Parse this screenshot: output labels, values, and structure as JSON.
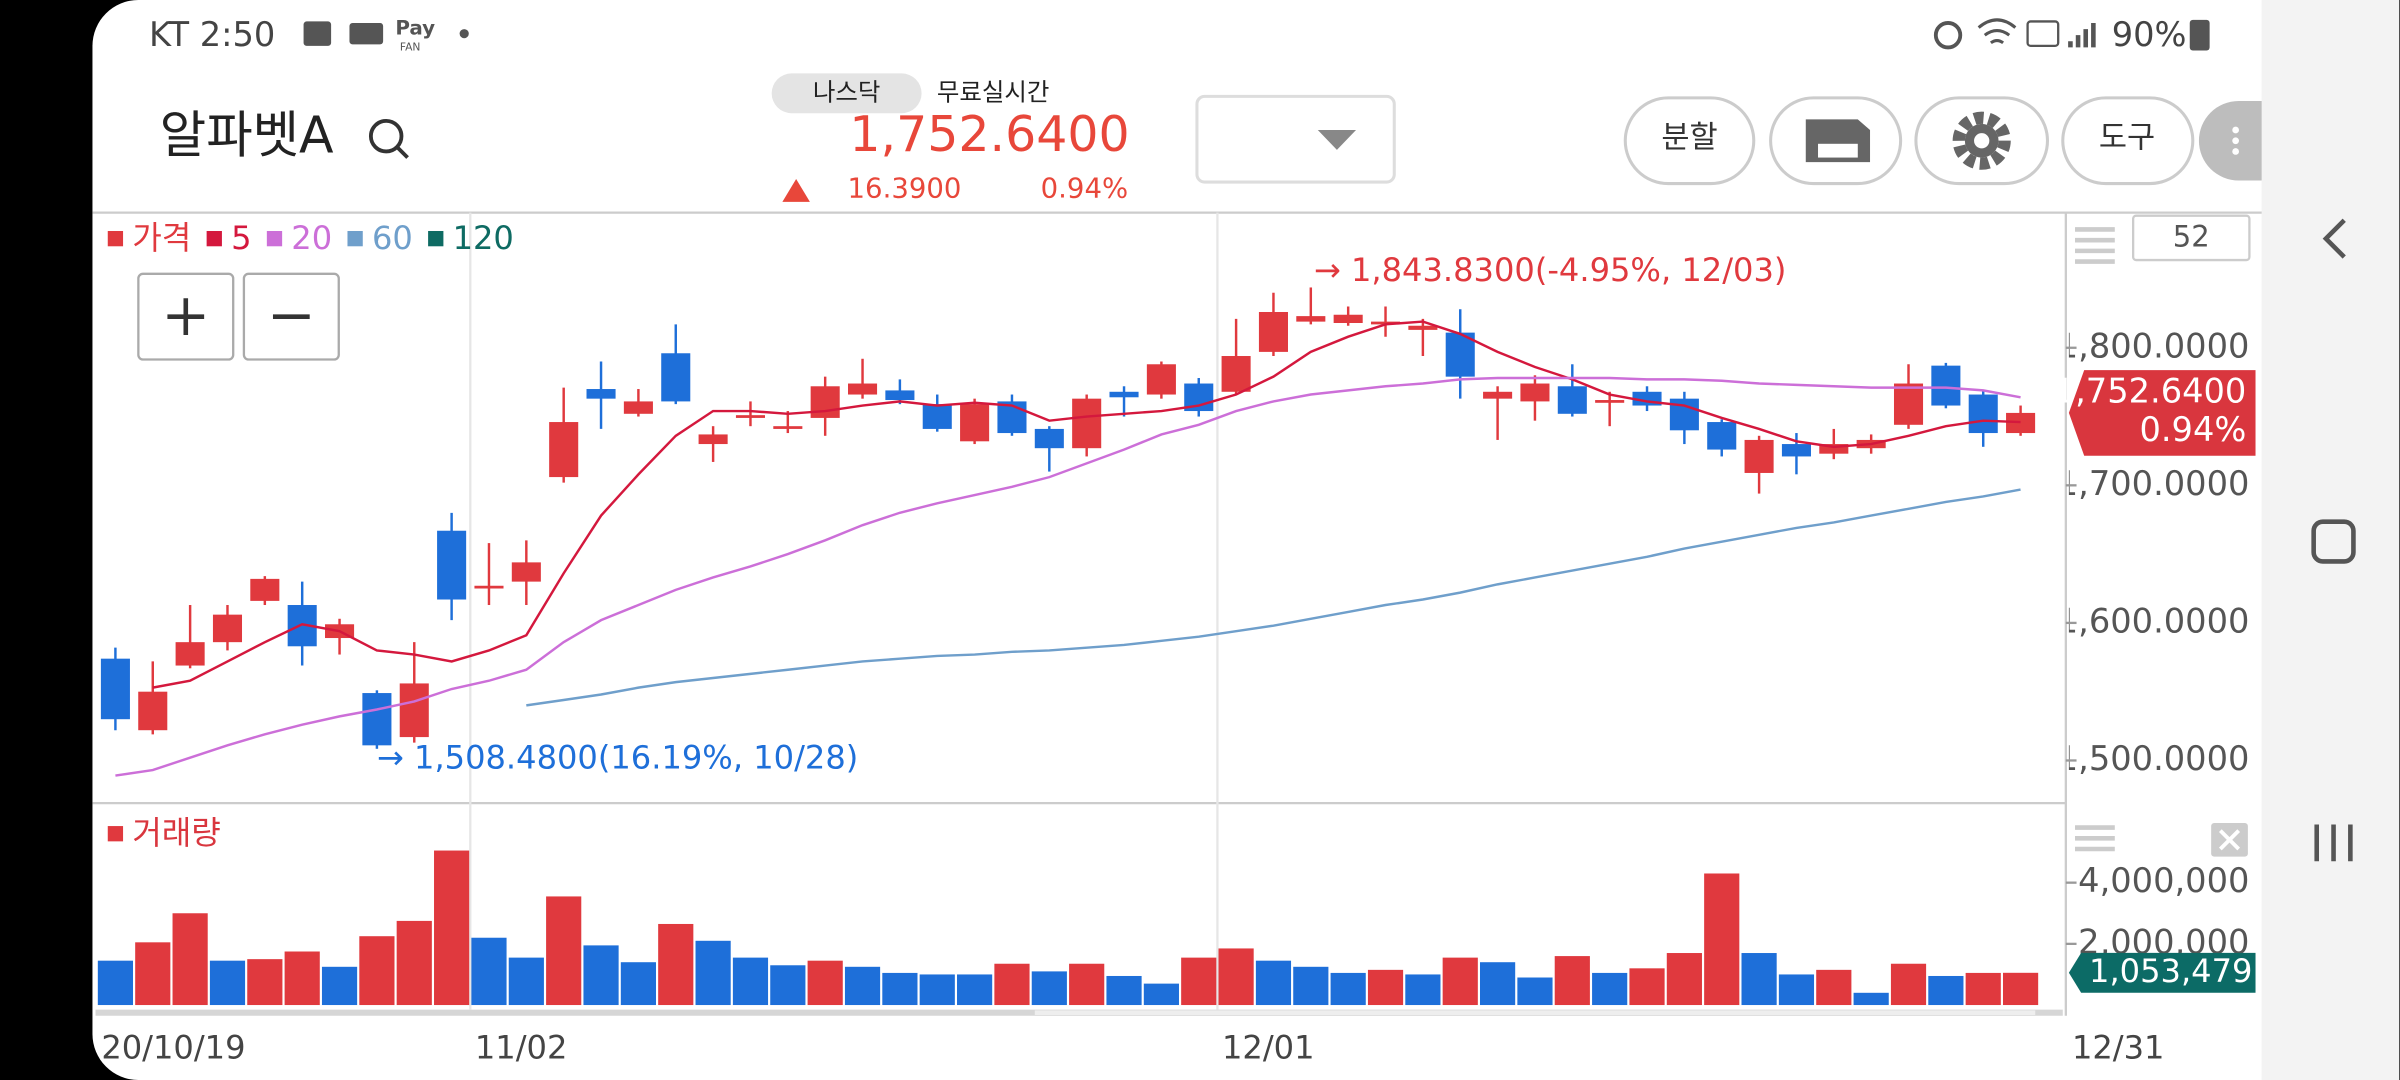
{
  "status_bar": {
    "carrier_time": "KT 2:50",
    "pay": "Pay",
    "pay_sub": "FAN",
    "battery": "90%"
  },
  "header": {
    "title": "알파벳A",
    "exchange": "나스닥",
    "feed": "무료실시간",
    "price": "1,752.6400",
    "change": "16.3900",
    "change_pct": "0.94%"
  },
  "toolbar": {
    "split": "분할",
    "tools": "도구"
  },
  "chart_data": [
    {
      "type": "candlestick",
      "categories": [
        "20/10/19",
        null,
        null,
        null,
        null,
        null,
        null,
        null,
        null,
        null,
        "11/02",
        null,
        null,
        null,
        null,
        null,
        null,
        null,
        null,
        null,
        null,
        null,
        null,
        null,
        null,
        null,
        null,
        null,
        null,
        null,
        "12/01",
        null,
        null,
        null,
        null,
        null,
        null,
        null,
        null,
        null,
        null,
        null,
        null,
        null,
        null,
        null,
        null,
        null,
        null,
        null,
        null,
        null
      ],
      "open": [
        1574,
        1522,
        1569,
        1586,
        1616,
        1613,
        1589,
        1549,
        1517,
        1667,
        1625,
        1630,
        1706,
        1770,
        1752,
        1796,
        1730,
        1749,
        1741,
        1749,
        1766,
        1769,
        1759,
        1732,
        1761,
        1741,
        1727,
        1768,
        1766,
        1774,
        1768,
        1797,
        1819,
        1818,
        1817,
        1813,
        1811,
        1763,
        1761,
        1772,
        1760,
        1768,
        1763,
        1746,
        1709,
        1730,
        1723,
        1727,
        1744,
        1787,
        1766,
        1738
      ],
      "high": [
        1582,
        1572,
        1613,
        1613,
        1634,
        1630,
        1603,
        1551,
        1586,
        1680,
        1658,
        1660,
        1771,
        1790,
        1770,
        1817,
        1743,
        1761,
        1754,
        1779,
        1792,
        1777,
        1766,
        1763,
        1766,
        1743,
        1766,
        1772,
        1790,
        1778,
        1821,
        1840,
        1843.83,
        1830,
        1830,
        1821,
        1828,
        1772,
        1780,
        1788,
        1768,
        1772,
        1768,
        1748,
        1736,
        1738,
        1741,
        1737,
        1788,
        1789,
        1769,
        1758
      ],
      "low": [
        1522,
        1519,
        1567,
        1580,
        1613,
        1569,
        1577,
        1508.48,
        1513,
        1602,
        1613,
        1613,
        1702,
        1741,
        1750,
        1759,
        1717,
        1743,
        1738,
        1736,
        1763,
        1759,
        1739,
        1730,
        1736,
        1710,
        1721,
        1750,
        1763,
        1750,
        1766,
        1794,
        1817,
        1816,
        1808,
        1794,
        1763,
        1733,
        1747,
        1750,
        1743,
        1754,
        1730,
        1721,
        1694,
        1708,
        1719,
        1723,
        1741,
        1756,
        1728,
        1736
      ],
      "close": [
        1530,
        1550,
        1586,
        1606,
        1632,
        1583,
        1599,
        1511,
        1556,
        1617,
        1627,
        1644,
        1746,
        1763,
        1761,
        1761,
        1737,
        1751,
        1743,
        1772,
        1774,
        1762,
        1741,
        1759,
        1738,
        1727,
        1763,
        1764,
        1788,
        1754,
        1794,
        1826,
        1823,
        1824,
        1819,
        1816,
        1779,
        1768,
        1774,
        1752,
        1762,
        1758,
        1740,
        1726,
        1733,
        1721,
        1730,
        1733,
        1774,
        1758,
        1738,
        1752.64
      ],
      "up_color": "#e0393e",
      "down_color": "#1e6fd9",
      "price_legend": "가격",
      "series": [
        {
          "name": "5",
          "color": "#d4183d",
          "values": [
            null,
            1553,
            1558,
            1572,
            1586,
            1599,
            1594,
            1580,
            1577,
            1572,
            1580,
            1591,
            1636,
            1678,
            1708,
            1736,
            1754,
            1754,
            1752,
            1754,
            1758,
            1761,
            1758,
            1760,
            1758,
            1747,
            1750,
            1752,
            1754,
            1758,
            1766,
            1779,
            1797,
            1808,
            1817,
            1819,
            1810,
            1797,
            1786,
            1777,
            1766,
            1761,
            1758,
            1749,
            1741,
            1732,
            1728,
            1730,
            1736,
            1743,
            1747,
            1746
          ]
        },
        {
          "name": "20",
          "color": "#cc6fd8",
          "values": [
            1489,
            1493,
            1502,
            1511,
            1519,
            1526,
            1532,
            1537,
            1543,
            1552,
            1558,
            1566,
            1586,
            1602,
            1613,
            1624,
            1633,
            1641,
            1650,
            1660,
            1671,
            1680,
            1687,
            1693,
            1699,
            1706,
            1716,
            1726,
            1737,
            1744,
            1754,
            1761,
            1766,
            1769,
            1772,
            1774,
            1777,
            1778,
            1778,
            1778,
            1778,
            1777,
            1777,
            1776,
            1774,
            1773,
            1772,
            1771,
            1771,
            1771,
            1769,
            1764
          ]
        },
        {
          "name": "60",
          "color": "#6f9fcb",
          "values": [
            null,
            null,
            null,
            null,
            null,
            null,
            null,
            null,
            null,
            null,
            null,
            1540,
            1544,
            1548,
            1553,
            1557,
            1560,
            1563,
            1566,
            1569,
            1572,
            1574,
            1576,
            1577,
            1579,
            1580,
            1582,
            1584,
            1587,
            1590,
            1594,
            1598,
            1603,
            1608,
            1613,
            1617,
            1622,
            1628,
            1633,
            1638,
            1643,
            1648,
            1654,
            1659,
            1664,
            1669,
            1673,
            1678,
            1683,
            1688,
            1692,
            1697
          ]
        },
        {
          "name": "120",
          "color": "#0e6b63",
          "values": [
            null,
            null,
            null,
            null,
            null,
            null,
            null,
            null,
            null,
            null,
            null,
            null,
            null,
            null,
            null,
            null,
            null,
            null,
            null,
            null,
            null,
            null,
            null,
            null,
            null,
            null,
            null,
            null,
            null,
            null,
            null,
            null,
            null,
            null,
            null,
            null,
            null,
            null,
            null,
            null,
            null,
            null,
            null,
            null,
            null,
            null,
            null,
            null,
            null,
            null,
            null,
            null
          ]
        }
      ],
      "ylim": [
        1469,
        1896
      ],
      "yticks": [
        {
          "value": 1500,
          "label": "1,500.0000"
        },
        {
          "value": 1600,
          "label": "1,600.0000"
        },
        {
          "value": 1700,
          "label": "1,700.0000"
        },
        {
          "value": 1800,
          "label": "1,800.0000"
        }
      ],
      "visible_count": 52,
      "high_note": "→ 1,843.8300(-4.95%, 12/03)",
      "low_note": "→ 1,508.4800(16.19%, 10/28)",
      "last_price_label": "1,752.6400",
      "last_change_label": "0.94%"
    },
    {
      "type": "bar",
      "title": "거래량",
      "values": [
        1450000,
        2050000,
        3000000,
        1450000,
        1500000,
        1750000,
        1250000,
        2250000,
        2750000,
        5050000,
        2200000,
        1550000,
        3550000,
        1950000,
        1400000,
        2650000,
        2100000,
        1550000,
        1300000,
        1450000,
        1250000,
        1050000,
        1000000,
        1000000,
        1350000,
        1100000,
        1350000,
        950000,
        700000,
        1550000,
        1850000,
        1450000,
        1250000,
        1050000,
        1150000,
        1000000,
        1550000,
        1400000,
        900000,
        1600000,
        1050000,
        1200000,
        1700000,
        4300000,
        1700000,
        1000000,
        1150000,
        400000,
        1350000,
        950000,
        1050000,
        1053479
      ],
      "value_labels": [
        null,
        null,
        null,
        null,
        null,
        null,
        null,
        null,
        null,
        null,
        null,
        null,
        null,
        null,
        null,
        null,
        null,
        null,
        null,
        null,
        null,
        null,
        null,
        null,
        null,
        null,
        null,
        null,
        null,
        null,
        null,
        null,
        null,
        null,
        null,
        null,
        null,
        null,
        null,
        null,
        null,
        null,
        null,
        null,
        null,
        null,
        null,
        null,
        null,
        null,
        null,
        "1,053,479"
      ],
      "colors": [
        "#1e6fd9",
        "#e0393e",
        "#e0393e",
        "#1e6fd9",
        "#e0393e",
        "#e0393e",
        "#1e6fd9",
        "#e0393e",
        "#e0393e",
        "#e0393e",
        "#1e6fd9",
        "#1e6fd9",
        "#e0393e",
        "#1e6fd9",
        "#1e6fd9",
        "#e0393e",
        "#1e6fd9",
        "#1e6fd9",
        "#1e6fd9",
        "#e0393e",
        "#1e6fd9",
        "#1e6fd9",
        "#1e6fd9",
        "#1e6fd9",
        "#e0393e",
        "#1e6fd9",
        "#e0393e",
        "#1e6fd9",
        "#1e6fd9",
        "#e0393e",
        "#e0393e",
        "#1e6fd9",
        "#1e6fd9",
        "#1e6fd9",
        "#e0393e",
        "#1e6fd9",
        "#e0393e",
        "#1e6fd9",
        "#1e6fd9",
        "#e0393e",
        "#1e6fd9",
        "#e0393e",
        "#e0393e",
        "#e0393e",
        "#1e6fd9",
        "#1e6fd9",
        "#e0393e",
        "#1e6fd9",
        "#e0393e",
        "#1e6fd9",
        "#e0393e",
        "#e0393e"
      ],
      "label_color": "#0c6b66",
      "ylim": [
        0,
        6350000
      ],
      "yticks": [
        {
          "value": 2000000,
          "label": "2,000,000"
        },
        {
          "value": 4000000,
          "label": "4,000,000"
        }
      ],
      "x_end_label": "12/31"
    }
  ]
}
